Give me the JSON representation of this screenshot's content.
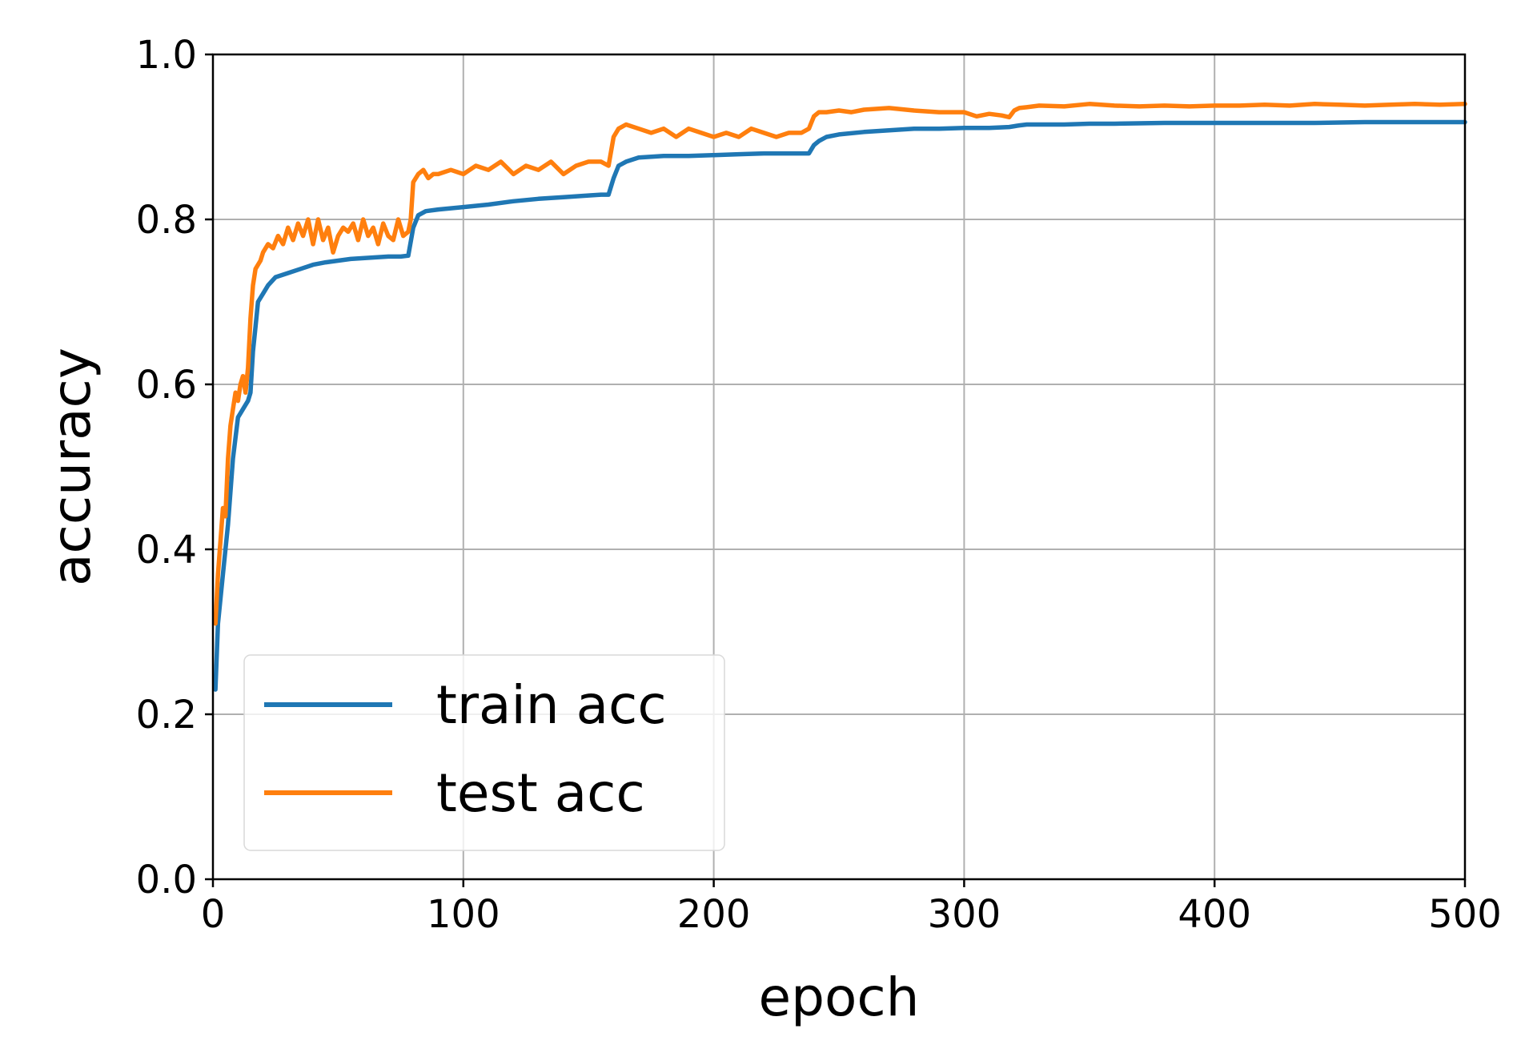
{
  "chart_data": {
    "type": "line",
    "title": "",
    "xlabel": "epoch",
    "ylabel": "accuracy",
    "xlim": [
      0,
      500
    ],
    "ylim": [
      0.0,
      1.0
    ],
    "xticks": [
      0,
      100,
      200,
      300,
      400,
      500
    ],
    "xtick_labels": [
      "0",
      "100",
      "200",
      "300",
      "400",
      "500"
    ],
    "yticks": [
      0.0,
      0.2,
      0.4,
      0.6,
      0.8,
      1.0
    ],
    "ytick_labels": [
      "0.0",
      "0.2",
      "0.4",
      "0.6",
      "0.8",
      "1.0"
    ],
    "grid": true,
    "legend_position": "lower-left",
    "series": [
      {
        "name": "train acc",
        "color": "#1f77b4",
        "x": [
          1,
          2,
          4,
          6,
          8,
          10,
          12,
          14,
          15,
          16,
          17,
          18,
          20,
          22,
          25,
          30,
          35,
          40,
          45,
          50,
          55,
          60,
          65,
          70,
          75,
          78,
          80,
          82,
          85,
          90,
          100,
          110,
          120,
          130,
          140,
          150,
          155,
          158,
          160,
          162,
          165,
          170,
          180,
          190,
          200,
          210,
          220,
          230,
          238,
          240,
          242,
          245,
          250,
          260,
          270,
          280,
          290,
          300,
          310,
          318,
          320,
          322,
          325,
          330,
          340,
          350,
          360,
          380,
          400,
          420,
          440,
          460,
          480,
          500
        ],
        "y": [
          0.23,
          0.31,
          0.37,
          0.43,
          0.51,
          0.56,
          0.57,
          0.58,
          0.59,
          0.64,
          0.67,
          0.7,
          0.71,
          0.72,
          0.73,
          0.735,
          0.74,
          0.745,
          0.748,
          0.75,
          0.752,
          0.753,
          0.754,
          0.755,
          0.755,
          0.756,
          0.79,
          0.805,
          0.81,
          0.812,
          0.815,
          0.818,
          0.822,
          0.825,
          0.827,
          0.829,
          0.83,
          0.83,
          0.85,
          0.865,
          0.87,
          0.875,
          0.877,
          0.877,
          0.878,
          0.879,
          0.88,
          0.88,
          0.88,
          0.89,
          0.895,
          0.9,
          0.903,
          0.906,
          0.908,
          0.91,
          0.91,
          0.911,
          0.911,
          0.912,
          0.913,
          0.914,
          0.915,
          0.915,
          0.915,
          0.916,
          0.916,
          0.917,
          0.917,
          0.917,
          0.917,
          0.918,
          0.918,
          0.918
        ]
      },
      {
        "name": "test acc",
        "color": "#ff7f0e",
        "x": [
          1,
          2,
          3,
          4,
          5,
          6,
          7,
          8,
          9,
          10,
          11,
          12,
          13,
          14,
          15,
          16,
          17,
          18,
          19,
          20,
          22,
          24,
          26,
          28,
          30,
          32,
          34,
          36,
          38,
          40,
          42,
          44,
          46,
          48,
          50,
          52,
          54,
          56,
          58,
          60,
          62,
          64,
          66,
          68,
          70,
          72,
          74,
          76,
          78,
          79,
          80,
          82,
          84,
          86,
          88,
          90,
          95,
          100,
          105,
          110,
          115,
          120,
          125,
          130,
          135,
          140,
          145,
          150,
          155,
          158,
          160,
          162,
          165,
          170,
          175,
          180,
          185,
          190,
          195,
          200,
          205,
          210,
          215,
          220,
          225,
          230,
          235,
          238,
          240,
          242,
          245,
          250,
          255,
          260,
          270,
          280,
          290,
          300,
          305,
          310,
          315,
          318,
          320,
          322,
          325,
          330,
          340,
          350,
          360,
          370,
          380,
          390,
          400,
          410,
          420,
          430,
          440,
          450,
          460,
          470,
          480,
          490,
          500
        ],
        "y": [
          0.31,
          0.37,
          0.41,
          0.45,
          0.44,
          0.51,
          0.55,
          0.57,
          0.59,
          0.58,
          0.6,
          0.61,
          0.59,
          0.62,
          0.68,
          0.72,
          0.74,
          0.745,
          0.75,
          0.76,
          0.77,
          0.765,
          0.78,
          0.77,
          0.79,
          0.775,
          0.795,
          0.78,
          0.8,
          0.77,
          0.8,
          0.775,
          0.79,
          0.76,
          0.78,
          0.79,
          0.785,
          0.795,
          0.775,
          0.8,
          0.78,
          0.79,
          0.77,
          0.795,
          0.78,
          0.775,
          0.8,
          0.78,
          0.785,
          0.8,
          0.845,
          0.855,
          0.86,
          0.85,
          0.855,
          0.855,
          0.86,
          0.855,
          0.865,
          0.86,
          0.87,
          0.855,
          0.865,
          0.86,
          0.87,
          0.855,
          0.865,
          0.87,
          0.87,
          0.865,
          0.9,
          0.91,
          0.915,
          0.91,
          0.905,
          0.91,
          0.9,
          0.91,
          0.905,
          0.9,
          0.905,
          0.9,
          0.91,
          0.905,
          0.9,
          0.905,
          0.905,
          0.91,
          0.925,
          0.93,
          0.93,
          0.932,
          0.93,
          0.933,
          0.935,
          0.932,
          0.93,
          0.93,
          0.925,
          0.928,
          0.926,
          0.924,
          0.932,
          0.935,
          0.936,
          0.938,
          0.937,
          0.94,
          0.938,
          0.937,
          0.938,
          0.937,
          0.938,
          0.938,
          0.939,
          0.938,
          0.94,
          0.939,
          0.938,
          0.939,
          0.94,
          0.939,
          0.94
        ]
      }
    ]
  }
}
